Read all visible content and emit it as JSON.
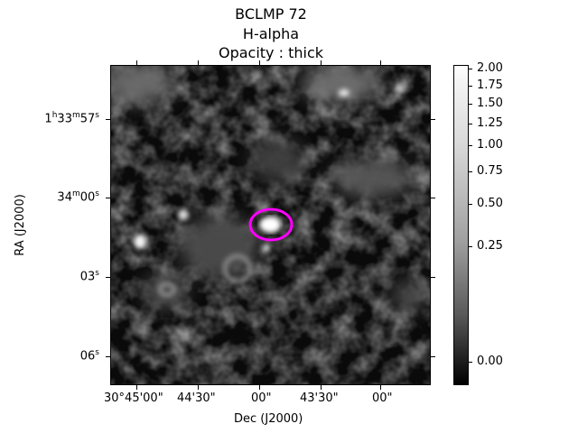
{
  "title": {
    "line1": "BCLMP 72",
    "line2": "H-alpha",
    "line3": "Opacity : thick"
  },
  "axes": {
    "xlabel": "Dec (J2000)",
    "ylabel": "RA (J2000)",
    "x_ticks": [
      "30°45'00\"",
      "44'30\"",
      "00\"",
      "43'30\"",
      "00\""
    ],
    "y_ticks": [
      {
        "main": "1",
        "sup1": "h",
        "mid": "33",
        "sup2": "m",
        "end": "57",
        "sup3": "s"
      },
      {
        "main": "34",
        "sup1": "m",
        "mid": "00",
        "sup2": "s",
        "end": "",
        "sup3": ""
      },
      {
        "main": "03",
        "sup1": "s",
        "mid": "",
        "sup2": "",
        "end": "",
        "sup3": ""
      },
      {
        "main": "06",
        "sup1": "s",
        "mid": "",
        "sup2": "",
        "end": "",
        "sup3": ""
      }
    ]
  },
  "colorbar": {
    "ticks": [
      "2.00",
      "1.75",
      "1.50",
      "1.25",
      "1.00",
      "0.75",
      "0.50",
      "0.25",
      "0.00"
    ]
  },
  "colors": {
    "ellipse": "#ff00ff",
    "background": "#000000"
  }
}
